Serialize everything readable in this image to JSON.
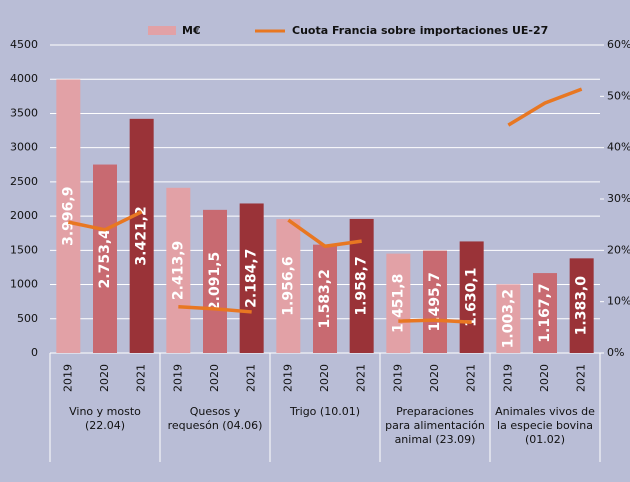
{
  "chart_data": {
    "type": "bar_line",
    "categories": [
      [
        "Vino y mosto",
        "(22.04)"
      ],
      [
        "Quesos y",
        "requesón (04.06)"
      ],
      [
        "Trigo (10.01)"
      ],
      [
        "Preparaciones",
        "para alimentación",
        "animal  (23.09)"
      ],
      [
        "Animales vivos de",
        "la especie bovina",
        "(01.02)"
      ]
    ],
    "subcategories": [
      "2019",
      "2020",
      "2021"
    ],
    "series": [
      {
        "name": "M€",
        "type": "bar",
        "colors": [
          "#e2a1a6",
          "#c86a71",
          "#9a3338"
        ],
        "values": [
          [
            3996.9,
            2753.4,
            3421.2
          ],
          [
            2413.9,
            2091.5,
            2184.7
          ],
          [
            1956.6,
            1583.2,
            1958.7
          ],
          [
            1451.8,
            1495.7,
            1630.1
          ],
          [
            1003.2,
            1167.7,
            1383.0
          ]
        ],
        "value_labels": [
          [
            "3.996,9",
            "2.753,4",
            "3.421,2"
          ],
          [
            "2.413,9",
            "2.091,5",
            "2.184,7"
          ],
          [
            "1.956,6",
            "1.583,2",
            "1.958,7"
          ],
          [
            "1.451,8",
            "1.495,7",
            "1.630,1"
          ],
          [
            "1.003,2",
            "1.167,7",
            "1.383,0"
          ]
        ]
      },
      {
        "name": "Cuota Francia sobre importaciones UE-27",
        "type": "line",
        "axis": "y2",
        "color": "#e87722",
        "values": [
          [
            25.5,
            24.0,
            27.5
          ],
          [
            9.0,
            8.6,
            8.0
          ],
          [
            25.9,
            20.8,
            21.8
          ],
          [
            6.2,
            6.4,
            6.0
          ],
          [
            44.4,
            48.7,
            51.4
          ]
        ]
      }
    ],
    "ylim": [
      0,
      4500
    ],
    "yticks": [
      0,
      500,
      1000,
      1500,
      2000,
      2500,
      3000,
      3500,
      4000,
      4500
    ],
    "y2lim": [
      0,
      60
    ],
    "y2ticks": [
      {
        "value": 0,
        "label": "0%"
      },
      {
        "value": 10,
        "label": "10%"
      },
      {
        "value": 20,
        "label": "20%"
      },
      {
        "value": 30,
        "label": "30%"
      },
      {
        "value": 40,
        "label": "40%"
      },
      {
        "value": 50,
        "label": "50%"
      },
      {
        "value": 60,
        "label": "60%"
      }
    ],
    "grid": true
  }
}
